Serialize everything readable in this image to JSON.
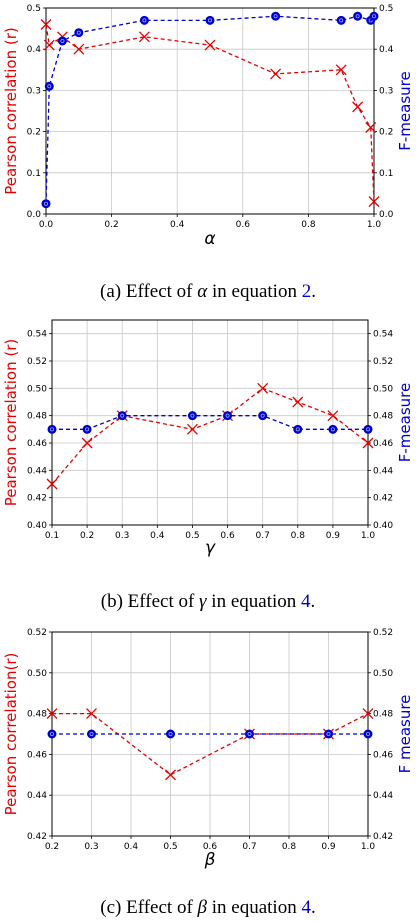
{
  "chart_data": [
    {
      "type": "line",
      "xlabel": "α",
      "ylabel_left": "Pearson correlation (r)",
      "ylabel_right": "F-measure",
      "xlim": [
        0,
        1
      ],
      "ylim_left": [
        0,
        0.5
      ],
      "ylim_right": [
        0,
        0.5
      ],
      "grid": true,
      "x_ticks": [
        "0.0",
        "0.2",
        "0.4",
        "0.6",
        "0.8",
        "1.0"
      ],
      "y_ticks_left": [
        "0.0",
        "0.1",
        "0.2",
        "0.3",
        "0.4",
        "0.5"
      ],
      "y_ticks_right": [
        "0.0",
        "0.1",
        "0.2",
        "0.3",
        "0.4",
        "0.5"
      ],
      "series": [
        {
          "axis": "left",
          "color": "#e60000",
          "marker": "x",
          "points": [
            [
              0,
              0.46
            ],
            [
              0.01,
              0.41
            ],
            [
              0.05,
              0.43
            ],
            [
              0.1,
              0.4
            ],
            [
              0.3,
              0.43
            ],
            [
              0.5,
              0.41
            ],
            [
              0.7,
              0.34
            ],
            [
              0.9,
              0.35
            ],
            [
              0.95,
              0.26
            ],
            [
              0.99,
              0.21
            ],
            [
              1.0,
              0.03
            ]
          ]
        },
        {
          "axis": "right",
          "color": "#0000cc",
          "marker": "o",
          "points": [
            [
              0,
              0.025
            ],
            [
              0.01,
              0.31
            ],
            [
              0.05,
              0.42
            ],
            [
              0.1,
              0.44
            ],
            [
              0.3,
              0.47
            ],
            [
              0.5,
              0.47
            ],
            [
              0.7,
              0.48
            ],
            [
              0.9,
              0.47
            ],
            [
              0.95,
              0.48
            ],
            [
              0.99,
              0.47
            ],
            [
              1.0,
              0.48
            ]
          ]
        }
      ],
      "caption": {
        "prefix": "(a) Effect of ",
        "symbol": "α",
        "middle": " in equation ",
        "ref": "2",
        "suffix": "."
      }
    },
    {
      "type": "line",
      "xlabel": "γ",
      "ylabel_left": "Pearson correlation (r)",
      "ylabel_right": "F-measure",
      "xlim": [
        0.1,
        1.0
      ],
      "ylim_left": [
        0.4,
        0.55
      ],
      "ylim_right": [
        0.4,
        0.55
      ],
      "grid": true,
      "x_ticks": [
        "0.1",
        "0.2",
        "0.3",
        "0.4",
        "0.5",
        "0.6",
        "0.7",
        "0.8",
        "0.9",
        "1.0"
      ],
      "y_ticks_left": [
        "0.40",
        "0.42",
        "0.44",
        "0.46",
        "0.48",
        "0.50",
        "0.52",
        "0.54"
      ],
      "y_ticks_right": [
        "0.40",
        "0.42",
        "0.44",
        "0.46",
        "0.48",
        "0.50",
        "0.52",
        "0.54"
      ],
      "series": [
        {
          "axis": "left",
          "color": "#e60000",
          "marker": "x",
          "points": [
            [
              0.1,
              0.43
            ],
            [
              0.2,
              0.46
            ],
            [
              0.3,
              0.48
            ],
            [
              0.5,
              0.47
            ],
            [
              0.6,
              0.48
            ],
            [
              0.7,
              0.5
            ],
            [
              0.8,
              0.49
            ],
            [
              0.9,
              0.48
            ],
            [
              1.0,
              0.46
            ]
          ]
        },
        {
          "axis": "right",
          "color": "#0000cc",
          "marker": "o",
          "points": [
            [
              0.1,
              0.47
            ],
            [
              0.2,
              0.47
            ],
            [
              0.3,
              0.48
            ],
            [
              0.5,
              0.48
            ],
            [
              0.6,
              0.48
            ],
            [
              0.7,
              0.48
            ],
            [
              0.8,
              0.47
            ],
            [
              0.9,
              0.47
            ],
            [
              1.0,
              0.47
            ]
          ]
        }
      ],
      "caption": {
        "prefix": "(b) Effect of ",
        "symbol": "γ",
        "middle": " in equation ",
        "ref": "4",
        "suffix": "."
      }
    },
    {
      "type": "line",
      "xlabel": "β",
      "ylabel_left": "Pearson correlation(r)",
      "ylabel_right": "F measure",
      "xlim": [
        0.2,
        1.0
      ],
      "ylim_left": [
        0.42,
        0.52
      ],
      "ylim_right": [
        0.42,
        0.52
      ],
      "grid": true,
      "x_ticks": [
        "0.2",
        "0.3",
        "0.4",
        "0.5",
        "0.6",
        "0.7",
        "0.8",
        "0.9",
        "1.0"
      ],
      "y_ticks_left": [
        "0.42",
        "0.44",
        "0.46",
        "0.48",
        "0.50",
        "0.52"
      ],
      "y_ticks_right": [
        "0.42",
        "0.44",
        "0.46",
        "0.48",
        "0.50",
        "0.52"
      ],
      "series": [
        {
          "axis": "left",
          "color": "#e60000",
          "marker": "x",
          "points": [
            [
              0.2,
              0.48
            ],
            [
              0.3,
              0.48
            ],
            [
              0.5,
              0.45
            ],
            [
              0.7,
              0.47
            ],
            [
              0.9,
              0.47
            ],
            [
              1.0,
              0.48
            ]
          ]
        },
        {
          "axis": "right",
          "color": "#0000cc",
          "marker": "o",
          "points": [
            [
              0.2,
              0.47
            ],
            [
              0.3,
              0.47
            ],
            [
              0.5,
              0.47
            ],
            [
              0.7,
              0.47
            ],
            [
              0.9,
              0.47
            ],
            [
              1.0,
              0.47
            ]
          ]
        }
      ],
      "caption": {
        "prefix": "(c) Effect of ",
        "symbol": "β",
        "middle": " in equation ",
        "ref": "4",
        "suffix": "."
      }
    }
  ]
}
